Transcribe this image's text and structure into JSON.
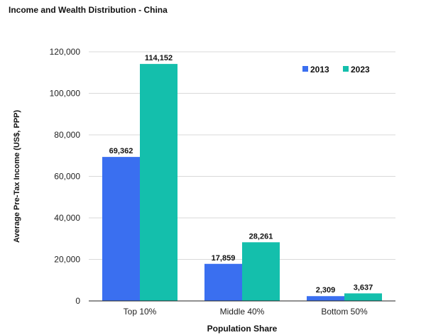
{
  "chart_data": {
    "type": "bar",
    "title": "Income and Wealth Distribution - China",
    "xlabel": "Population Share",
    "ylabel": "Average Pre-Tax Income (US$, PPP)",
    "categories": [
      "Top 10%",
      "Middle 40%",
      "Bottom 50%"
    ],
    "series": [
      {
        "name": "2013",
        "values": [
          69362,
          17859,
          2309
        ],
        "labels": [
          "69,362",
          "17,859",
          "2,309"
        ],
        "color": "#3a6ff0"
      },
      {
        "name": "2023",
        "values": [
          114152,
          28261,
          3637
        ],
        "labels": [
          "114,152",
          "28,261",
          "3,637"
        ],
        "color": "#14bfac"
      }
    ],
    "ylim": [
      0,
      120000
    ],
    "yticks": [
      0,
      20000,
      40000,
      60000,
      80000,
      100000,
      120000
    ],
    "ytick_labels": [
      "0",
      "20,000",
      "40,000",
      "60,000",
      "80,000",
      "100,000",
      "120,000"
    ],
    "grid": true,
    "legend_position": "top-right"
  }
}
